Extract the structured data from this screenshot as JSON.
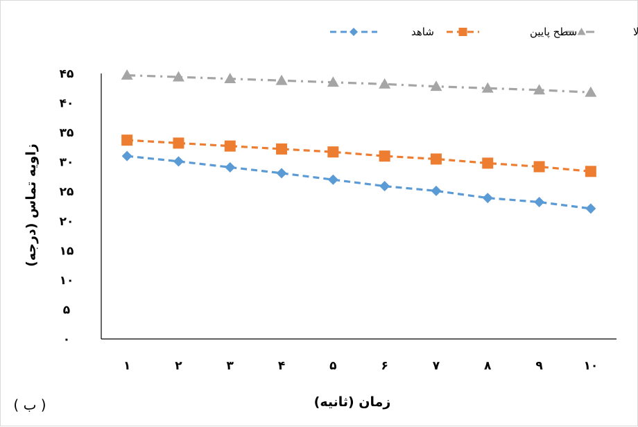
{
  "chart_data": {
    "type": "line",
    "title": "",
    "xlabel": "زمان (ثانیه)",
    "ylabel": "زاویه تماس (درجه)",
    "panel_label": "( ب )",
    "categories": [
      "۱",
      "۲",
      "۳",
      "۴",
      "۵",
      "۶",
      "۷",
      "۸",
      "۹",
      "۱۰"
    ],
    "y_ticks": [
      "۰",
      "۵",
      "۱۰",
      "۱۵",
      "۲۰",
      "۲۵",
      "۳۰",
      "۳۵",
      "۴۰",
      "۴۵"
    ],
    "ylim": [
      0,
      45
    ],
    "grid": false,
    "legend_position": "top-right",
    "series": [
      {
        "name": "سطح بالا",
        "color": "#a5a5a5",
        "marker": "triangle",
        "line_style": "dash-dot",
        "values": [
          44.7,
          44.4,
          44.1,
          43.8,
          43.5,
          43.2,
          42.8,
          42.5,
          42.2,
          41.8
        ]
      },
      {
        "name": "سطح پایین",
        "color": "#ed7d31",
        "marker": "square",
        "line_style": "dash",
        "values": [
          33.7,
          33.2,
          32.7,
          32.2,
          31.7,
          31.0,
          30.5,
          29.8,
          29.2,
          28.4
        ]
      },
      {
        "name": "شاهد",
        "color": "#5b9bd5",
        "marker": "diamond",
        "line_style": "dash",
        "values": [
          31.0,
          30.1,
          29.1,
          28.1,
          27.0,
          25.9,
          25.1,
          23.9,
          23.2,
          22.1
        ]
      }
    ]
  }
}
